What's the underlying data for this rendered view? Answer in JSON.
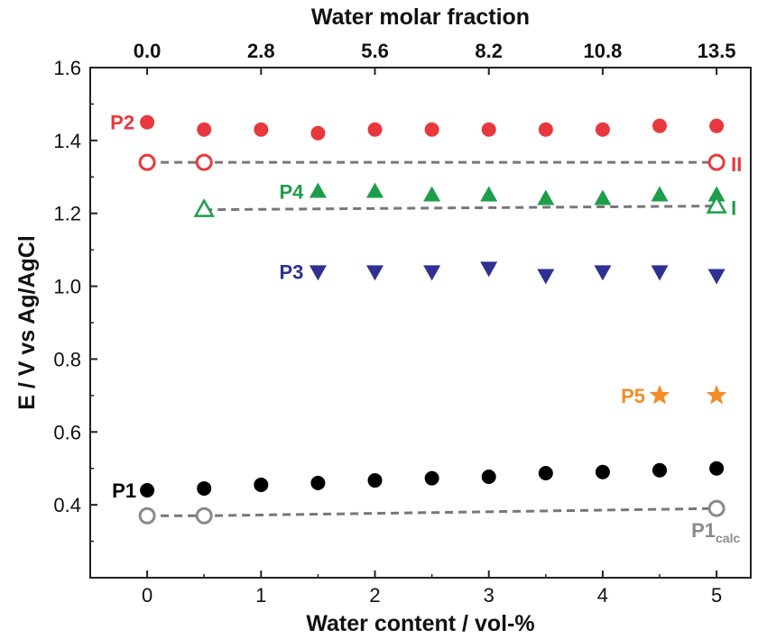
{
  "chart_data": {
    "type": "scatter",
    "xlabel": "Water content / vol-%",
    "ylabel": "E / V vs Ag/AgCl",
    "top_xlabel": "Water molar fraction",
    "xlim": [
      -0.5,
      5.3
    ],
    "ylim": [
      0.2,
      1.6
    ],
    "x_ticks": [
      0,
      1,
      2,
      3,
      4,
      5
    ],
    "x_tick_labels": [
      "0",
      "1",
      "2",
      "3",
      "4",
      "5"
    ],
    "y_ticks": [
      0.4,
      0.6,
      0.8,
      1.0,
      1.2,
      1.4,
      1.6
    ],
    "y_tick_labels": [
      "0.4",
      "0.6",
      "0.8",
      "1.0",
      "1.2",
      "1.4",
      "1.6"
    ],
    "top_ticks": [
      0,
      1,
      2,
      3,
      4,
      5
    ],
    "top_tick_labels": [
      "0.0",
      "2.8",
      "5.6",
      "8.2",
      "10.8",
      "13.5"
    ],
    "grid": false,
    "legend": "none",
    "series": [
      {
        "name": "P2",
        "marker": "circle-filled",
        "color": "#e8383d",
        "x": [
          0,
          0.5,
          1,
          1.5,
          2,
          2.5,
          3,
          3.5,
          4,
          4.5,
          5
        ],
        "y": [
          1.45,
          1.43,
          1.43,
          1.42,
          1.43,
          1.43,
          1.43,
          1.43,
          1.43,
          1.44,
          1.44
        ]
      },
      {
        "name": "II",
        "marker": "circle-open",
        "color": "#e8383d",
        "line": "dashed",
        "x": [
          0,
          0.5,
          5
        ],
        "y": [
          1.34,
          1.34,
          1.34
        ]
      },
      {
        "name": "P4",
        "marker": "triangle-up-filled",
        "color": "#1e9e4a",
        "x": [
          1.5,
          2,
          2.5,
          3,
          3.5,
          4,
          4.5,
          5
        ],
        "y": [
          1.26,
          1.26,
          1.25,
          1.25,
          1.24,
          1.24,
          1.25,
          1.25
        ]
      },
      {
        "name": "I",
        "marker": "triangle-up-open",
        "color": "#1e9e4a",
        "line": "dashed",
        "x": [
          0.5,
          5
        ],
        "y": [
          1.21,
          1.22
        ]
      },
      {
        "name": "P3",
        "marker": "triangle-down-filled",
        "color": "#2e3192",
        "x": [
          1.5,
          2,
          2.5,
          3,
          3.5,
          4,
          4.5,
          5
        ],
        "y": [
          1.04,
          1.04,
          1.04,
          1.05,
          1.03,
          1.04,
          1.04,
          1.03
        ]
      },
      {
        "name": "P5",
        "marker": "star-filled",
        "color": "#f28c28",
        "x": [
          4.5,
          5
        ],
        "y": [
          0.7,
          0.7
        ]
      },
      {
        "name": "P1",
        "marker": "circle-filled",
        "color": "#000000",
        "x": [
          0,
          0.5,
          1,
          1.5,
          2,
          2.5,
          3,
          3.5,
          4,
          4.5,
          5
        ],
        "y": [
          0.44,
          0.445,
          0.455,
          0.46,
          0.467,
          0.473,
          0.477,
          0.487,
          0.49,
          0.495,
          0.5
        ]
      },
      {
        "name": "P1calc",
        "marker": "circle-open",
        "color": "#8a8a8a",
        "line": "dashed",
        "x": [
          0,
          0.5,
          5
        ],
        "y": [
          0.37,
          0.37,
          0.39
        ]
      }
    ],
    "annotations": [
      {
        "text": "P2",
        "color": "#e8383d"
      },
      {
        "text": "II",
        "color": "#e8383d"
      },
      {
        "text": "P4",
        "color": "#1e9e4a"
      },
      {
        "text": "I",
        "color": "#1e9e4a"
      },
      {
        "text": "P3",
        "color": "#2e3192"
      },
      {
        "text": "P5",
        "color": "#f28c28"
      },
      {
        "text": "P1",
        "color": "#000000"
      },
      {
        "text": "P1",
        "subscript": "calc",
        "color": "#8a8a8a"
      }
    ],
    "dashed_line_color": "#777777"
  }
}
